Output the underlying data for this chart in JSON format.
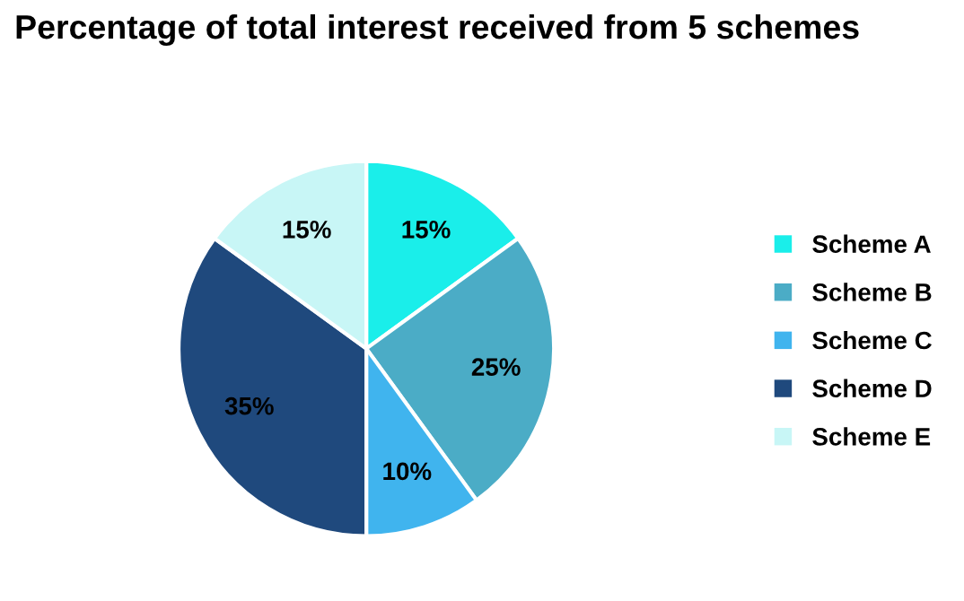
{
  "chart_data": {
    "type": "pie",
    "title": "Percentage of total interest received from 5 schemes",
    "categories": [
      "Scheme A",
      "Scheme B",
      "Scheme C",
      "Scheme D",
      "Scheme E"
    ],
    "values": [
      15,
      25,
      10,
      35,
      15
    ],
    "value_labels": [
      "15%",
      "25%",
      "10%",
      "35%",
      "15%"
    ],
    "colors": [
      "#1aeeea",
      "#4bacc6",
      "#40b4ee",
      "#1f497d",
      "#c8f6f6"
    ],
    "legend": "right"
  }
}
